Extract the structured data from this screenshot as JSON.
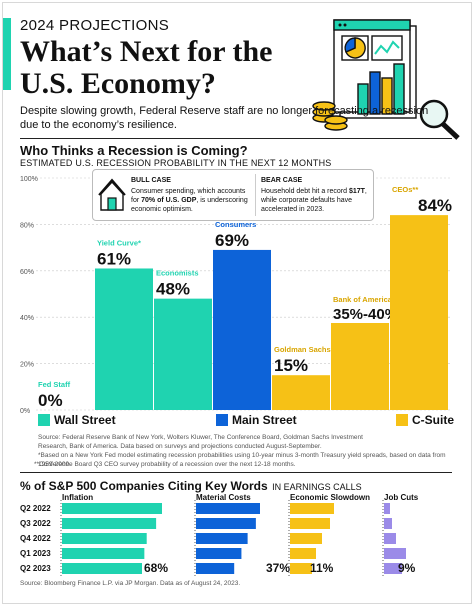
{
  "header": {
    "kicker": "2024 PROJECTIONS",
    "headline": "What’s Next for the U.S. Economy?",
    "dek": "Despite slowing growth, Federal Reserve staff are no longer forecasting a recession due to the economy’s resilience."
  },
  "section1": {
    "title": "Who Thinks a Recession is Coming?",
    "subtitle": "ESTIMATED U.S. RECESSION PROBABILITY IN THE NEXT 12 MONTHS"
  },
  "cases": {
    "bull_title": "BULL CASE",
    "bull_text_a": "Consumer spending, which accounts for ",
    "bull_text_b": "70% of U.S. GDP",
    "bull_text_c": ", is underscoring economic optimism.",
    "bear_title": "BEAR CASE",
    "bear_text_a": "Household debt hit a record ",
    "bear_text_b": "$17T",
    "bear_text_c": ", while corporate defaults have accelerated in 2023."
  },
  "colors": {
    "teal": "#1fd3b0",
    "blue": "#0d63d8",
    "gold": "#f6c116",
    "grid": "#c9c9c9"
  },
  "chart_data": [
    {
      "type": "bar",
      "title": "Who Thinks a Recession is Coming?",
      "subtitle": "ESTIMATED U.S. RECESSION PROBABILITY IN THE NEXT 12 MONTHS",
      "ylim": [
        0,
        100
      ],
      "yticks": [
        "0%",
        "20%",
        "40%",
        "60%",
        "80%",
        "100%"
      ],
      "categories": [
        "Fed Staff",
        "Yield Curve*",
        "Economists",
        "Consumers",
        "Goldman Sachs",
        "Bank of America",
        "CEOs**"
      ],
      "values": [
        0,
        61,
        48,
        69,
        15,
        37.5,
        84
      ],
      "value_labels": [
        "0%",
        "61%",
        "48%",
        "69%",
        "15%",
        "35%-40%",
        "84%"
      ],
      "groups": [
        "Wall Street",
        "Wall Street",
        "Wall Street",
        "Main Street",
        "C-Suite",
        "C-Suite",
        "C-Suite"
      ],
      "legend": [
        "Wall Street",
        "Main Street",
        "C-Suite"
      ],
      "source": "Source: Federal Reserve Bank of New York, Wolters Kluwer, The Conference Board, Goldman Sachs Investment Research, Bank of America. Data based on surveys and projections conducted August-September.",
      "note1": "*Based on a New York Fed model estimating recession probabilities using 10-year minus 3-month Treasury yield spreads, based on data from 1959-2009.",
      "note2": "**Conference Board Q3 CEO survey probability of a recession over the next 12-18 months."
    },
    {
      "type": "bar",
      "title": "% of S&P 500 Companies Citing Key Words",
      "title_suffix": "IN EARNINGS CALLS",
      "quarters": [
        "Q2 2022",
        "Q3 2022",
        "Q4 2022",
        "Q1 2023",
        "Q2 2023"
      ],
      "series": [
        {
          "name": "Inflation",
          "values": [
            85,
            80,
            72,
            70,
            68
          ],
          "label": "68%"
        },
        {
          "name": "Material Costs",
          "values": [
            62,
            58,
            50,
            44,
            37
          ],
          "label": "37%"
        },
        {
          "name": "Economic Slowdown",
          "values": [
            22,
            20,
            16,
            13,
            11
          ],
          "label": "11%"
        },
        {
          "name": "Job Cuts",
          "values": [
            3,
            4,
            6,
            11,
            9
          ],
          "label": "9%"
        }
      ],
      "source": "Source: Bloomberg Finance L.P. via JP Morgan. Data as of August 24, 2023."
    }
  ]
}
